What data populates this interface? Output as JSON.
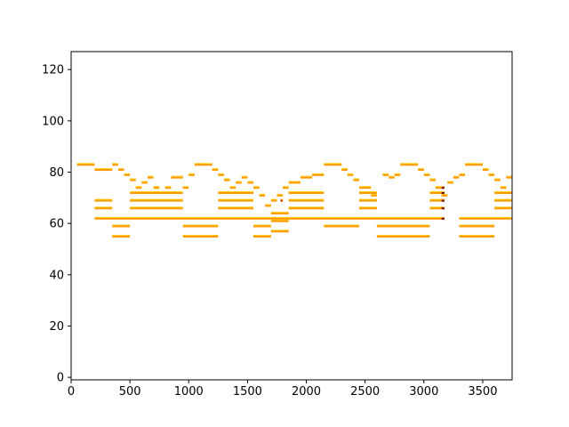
{
  "chart_data": {
    "type": "heatmap",
    "title": "",
    "xlabel": "",
    "ylabel": "",
    "xlim": [
      0,
      3750
    ],
    "ylim": [
      -1,
      127
    ],
    "xticks": [
      0,
      500,
      1000,
      1500,
      2000,
      2500,
      3000,
      3500
    ],
    "yticks": [
      0,
      20,
      40,
      60,
      80,
      100,
      120
    ],
    "grid": false,
    "colors": {
      "note": "#ff9a00",
      "note_edge": "#ffd21a",
      "accent": "#d22d00",
      "max": "#7a0000",
      "frame": "#000000"
    },
    "notes": [
      [
        50,
        200,
        83
      ],
      [
        200,
        350,
        81
      ],
      [
        350,
        400,
        83
      ],
      [
        400,
        450,
        81
      ],
      [
        450,
        500,
        79
      ],
      [
        500,
        550,
        77
      ],
      [
        550,
        600,
        74
      ],
      [
        600,
        650,
        76
      ],
      [
        650,
        700,
        78
      ],
      [
        700,
        750,
        74
      ],
      [
        800,
        850,
        74
      ],
      [
        850,
        950,
        78
      ],
      [
        950,
        1000,
        74
      ],
      [
        1000,
        1050,
        79
      ],
      [
        1050,
        1200,
        83
      ],
      [
        1200,
        1250,
        81
      ],
      [
        1250,
        1300,
        79
      ],
      [
        1300,
        1350,
        77
      ],
      [
        1350,
        1400,
        74
      ],
      [
        1400,
        1450,
        76
      ],
      [
        1450,
        1500,
        78
      ],
      [
        1500,
        1550,
        76
      ],
      [
        1550,
        1600,
        74
      ],
      [
        1600,
        1650,
        71
      ],
      [
        1650,
        1700,
        67
      ],
      [
        1700,
        1750,
        69
      ],
      [
        1750,
        1800,
        71
      ],
      [
        1800,
        1850,
        74
      ],
      [
        1850,
        1950,
        76
      ],
      [
        1950,
        2050,
        78
      ],
      [
        2050,
        2150,
        79
      ],
      [
        2150,
        2300,
        83
      ],
      [
        2300,
        2350,
        81
      ],
      [
        2350,
        2400,
        79
      ],
      [
        2400,
        2450,
        77
      ],
      [
        2450,
        2550,
        74
      ],
      [
        2550,
        2600,
        71
      ],
      [
        2650,
        2700,
        79
      ],
      [
        2700,
        2750,
        78
      ],
      [
        2750,
        2800,
        79
      ],
      [
        2800,
        2950,
        83
      ],
      [
        2950,
        3000,
        81
      ],
      [
        3000,
        3050,
        79
      ],
      [
        3050,
        3100,
        77
      ],
      [
        3100,
        3150,
        74
      ],
      [
        3150,
        3200,
        71
      ],
      [
        3200,
        3250,
        76
      ],
      [
        3250,
        3300,
        78
      ],
      [
        3300,
        3350,
        79
      ],
      [
        3350,
        3500,
        83
      ],
      [
        3500,
        3550,
        81
      ],
      [
        3550,
        3600,
        79
      ],
      [
        3600,
        3650,
        77
      ],
      [
        3650,
        3700,
        74
      ],
      [
        3700,
        3750,
        78
      ],
      [
        200,
        350,
        69
      ],
      [
        200,
        350,
        66
      ],
      [
        350,
        500,
        59
      ],
      [
        350,
        500,
        55
      ],
      [
        500,
        950,
        72
      ],
      [
        500,
        950,
        69
      ],
      [
        500,
        950,
        66
      ],
      [
        950,
        1250,
        59
      ],
      [
        950,
        1250,
        55
      ],
      [
        1250,
        1550,
        72
      ],
      [
        1250,
        1550,
        69
      ],
      [
        1250,
        1550,
        66
      ],
      [
        1550,
        1700,
        59
      ],
      [
        1550,
        1700,
        55
      ],
      [
        1700,
        1850,
        64
      ],
      [
        1700,
        1850,
        61
      ],
      [
        1700,
        1850,
        57
      ],
      [
        1850,
        2150,
        72
      ],
      [
        1850,
        2150,
        69
      ],
      [
        1850,
        2150,
        66
      ],
      [
        2150,
        2450,
        59
      ],
      [
        2450,
        2600,
        72
      ],
      [
        2450,
        2600,
        69
      ],
      [
        2450,
        2600,
        66
      ],
      [
        2600,
        3050,
        59
      ],
      [
        2600,
        3050,
        55
      ],
      [
        3050,
        3150,
        72
      ],
      [
        3050,
        3150,
        69
      ],
      [
        3050,
        3150,
        66
      ],
      [
        3300,
        3600,
        59
      ],
      [
        3300,
        3600,
        55
      ],
      [
        3600,
        3750,
        72
      ],
      [
        3600,
        3750,
        69
      ],
      [
        3600,
        3750,
        66
      ],
      [
        200,
        3150,
        62
      ],
      [
        3300,
        3750,
        62
      ]
    ],
    "accents": [
      [
        1780,
        69
      ]
    ],
    "max_cells": [
      [
        3150,
        74
      ],
      [
        3150,
        72
      ],
      [
        3150,
        69
      ],
      [
        3150,
        66
      ],
      [
        3150,
        62
      ]
    ]
  }
}
